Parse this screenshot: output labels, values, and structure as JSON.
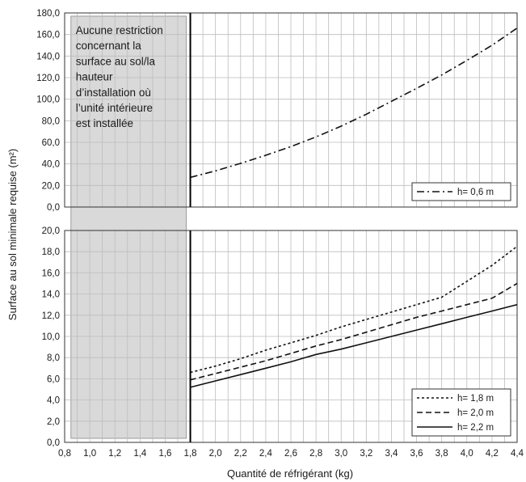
{
  "chart_data": [
    {
      "type": "line",
      "panel": "top",
      "ylim": [
        0,
        180
      ],
      "yticks": [
        "0,0",
        "20,0",
        "40,0",
        "60,0",
        "80,0",
        "100,0",
        "120,0",
        "140,0",
        "160,0",
        "180,0"
      ],
      "grid": true,
      "legend_position": "bottom-right",
      "series": [
        {
          "name": "h= 0,6 m",
          "style": "dash-dot",
          "x": [
            1.8,
            2.0,
            2.2,
            2.4,
            2.6,
            2.8,
            3.0,
            3.2,
            3.4,
            3.6,
            3.8,
            4.0,
            4.2,
            4.4
          ],
          "y": [
            27.5,
            33.5,
            40.5,
            48.0,
            56.0,
            65.0,
            75.0,
            86.0,
            98.0,
            110.0,
            122.5,
            136.0,
            150.0,
            166.0
          ]
        }
      ]
    },
    {
      "type": "line",
      "panel": "bottom",
      "ylim": [
        0,
        20
      ],
      "yticks": [
        "0,0",
        "2,0",
        "4,0",
        "6,0",
        "8,0",
        "10,0",
        "12,0",
        "14,0",
        "16,0",
        "18,0",
        "20,0"
      ],
      "grid": true,
      "legend_position": "bottom-right",
      "series": [
        {
          "name": "h= 1,8 m",
          "style": "dotted",
          "x": [
            1.8,
            2.0,
            2.2,
            2.4,
            2.6,
            2.8,
            3.0,
            3.2,
            3.4,
            3.6,
            3.8,
            4.0,
            4.2,
            4.4
          ],
          "y": [
            6.6,
            7.2,
            7.9,
            8.7,
            9.4,
            10.1,
            10.9,
            11.6,
            12.3,
            13.0,
            13.7,
            15.2,
            16.7,
            18.5
          ]
        },
        {
          "name": "h= 2,0 m",
          "style": "dashed",
          "x": [
            1.8,
            2.0,
            2.2,
            2.4,
            2.6,
            2.8,
            3.0,
            3.2,
            3.4,
            3.6,
            3.8,
            4.0,
            4.2,
            4.4
          ],
          "y": [
            5.9,
            6.5,
            7.1,
            7.7,
            8.4,
            9.1,
            9.7,
            10.4,
            11.1,
            11.8,
            12.4,
            13.0,
            13.6,
            15.0
          ]
        },
        {
          "name": "h= 2,2 m",
          "style": "solid",
          "x": [
            1.8,
            2.0,
            2.2,
            2.4,
            2.6,
            2.8,
            3.0,
            3.2,
            3.4,
            3.6,
            3.8,
            4.0,
            4.2,
            4.4
          ],
          "y": [
            5.2,
            5.8,
            6.4,
            7.0,
            7.6,
            8.3,
            8.8,
            9.4,
            10.0,
            10.6,
            11.2,
            11.8,
            12.4,
            13.0
          ]
        }
      ]
    }
  ],
  "shared": {
    "xlabel": "Quantité de réfrigérant (kg)",
    "ylabel": "Surface au sol minimale requise (m²)",
    "xlim": [
      0.8,
      4.4
    ],
    "xticks": [
      "0,8",
      "1,0",
      "1,2",
      "1,4",
      "1,6",
      "1,8",
      "2,0",
      "2,2",
      "2,4",
      "2,6",
      "2,8",
      "3,0",
      "3,2",
      "3,4",
      "3,6",
      "3,8",
      "4,0",
      "4,2",
      "4,4"
    ],
    "shaded_region": {
      "x_from": 0.85,
      "x_to": 1.8,
      "label_lines": [
        "Aucune restriction",
        "concernant la",
        "surface au sol/la",
        "hauteur",
        "d’installation où",
        "l’unité intérieure",
        "est installée"
      ],
      "fill_color": "#d9d9d9"
    },
    "threshold_x": 1.8
  }
}
